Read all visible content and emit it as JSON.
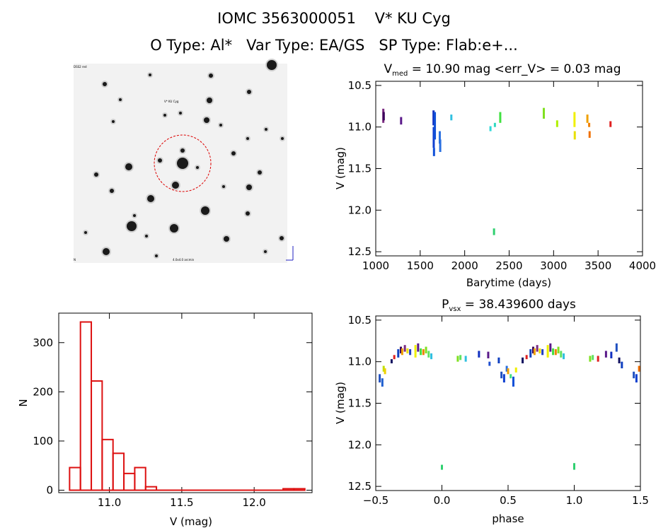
{
  "header": {
    "title": "IOMC 3563000051    V* KU Cyg",
    "subtitle": "O Type: Al*   Var Type: EA/GS   SP Type: Flab:e+..."
  },
  "image_panel": {
    "label_top_left": "DSS2 red",
    "label_target": "V* KU Cyg",
    "label_bottom_left": "N",
    "label_bottom_center": "4.0x4.0 arcmin",
    "colors": {
      "background": "#f2f2f2",
      "aperture": "#dd0000"
    }
  },
  "chart_data": [
    {
      "type": "scatter",
      "title": "V_med = 10.90 mag <err_V> = 0.03 mag",
      "title_parts": {
        "v": "V",
        "sub": "med",
        "rest": " = 10.90 mag <err_V> = 0.03 mag"
      },
      "xlabel": "Barytime (days)",
      "ylabel": "V (mag)",
      "xlim": [
        1000,
        4000
      ],
      "ylim": [
        12.55,
        10.45
      ],
      "xticks": [
        "1000",
        "1500",
        "2000",
        "2500",
        "3000",
        "3500",
        "4000"
      ],
      "yticks": [
        "10.5",
        "11.0",
        "11.5",
        "12.0",
        "12.5"
      ],
      "segments": [
        {
          "x": 1085,
          "y1": 10.78,
          "y2": 10.95,
          "color": "#7a2a80"
        },
        {
          "x": 1090,
          "y1": 10.82,
          "y2": 10.92,
          "color": "#3a005a"
        },
        {
          "x": 1285,
          "y1": 10.88,
          "y2": 10.97,
          "color": "#5a1a8a"
        },
        {
          "x": 1650,
          "y1": 10.8,
          "y2": 10.98,
          "color": "#1030c0"
        },
        {
          "x": 1652,
          "y1": 11.0,
          "y2": 11.25,
          "color": "#1040d0"
        },
        {
          "x": 1655,
          "y1": 11.25,
          "y2": 11.35,
          "color": "#1050d8"
        },
        {
          "x": 1665,
          "y1": 10.82,
          "y2": 11.15,
          "color": "#1050d8"
        },
        {
          "x": 1720,
          "y1": 11.05,
          "y2": 11.2,
          "color": "#2a70e0"
        },
        {
          "x": 1725,
          "y1": 11.15,
          "y2": 11.3,
          "color": "#2a70e0"
        },
        {
          "x": 1850,
          "y1": 10.85,
          "y2": 10.92,
          "color": "#30c0e0"
        },
        {
          "x": 2290,
          "y1": 10.99,
          "y2": 11.05,
          "color": "#30d8d8"
        },
        {
          "x": 2340,
          "y1": 10.95,
          "y2": 11.0,
          "color": "#30d8c0"
        },
        {
          "x": 2330,
          "y1": 12.22,
          "y2": 12.3,
          "color": "#30d070"
        },
        {
          "x": 2400,
          "y1": 10.82,
          "y2": 10.95,
          "color": "#40e040"
        },
        {
          "x": 2890,
          "y1": 10.77,
          "y2": 10.9,
          "color": "#80e020"
        },
        {
          "x": 3040,
          "y1": 10.92,
          "y2": 11.0,
          "color": "#b0f000"
        },
        {
          "x": 3235,
          "y1": 10.82,
          "y2": 11.0,
          "color": "#f0f000"
        },
        {
          "x": 3238,
          "y1": 11.05,
          "y2": 11.15,
          "color": "#e8e000"
        },
        {
          "x": 3380,
          "y1": 10.85,
          "y2": 10.95,
          "color": "#f0a000"
        },
        {
          "x": 3400,
          "y1": 10.95,
          "y2": 11.0,
          "color": "#f08000"
        },
        {
          "x": 3405,
          "y1": 11.05,
          "y2": 11.13,
          "color": "#f07000"
        },
        {
          "x": 3640,
          "y1": 10.93,
          "y2": 11.0,
          "color": "#e02020"
        }
      ]
    },
    {
      "type": "bar",
      "title": "",
      "xlabel": "V (mag)",
      "ylabel": "N",
      "xlim": [
        10.65,
        12.4
      ],
      "ylim": [
        -5,
        360
      ],
      "xticks": [
        "11.0",
        "11.5",
        "12.0"
      ],
      "yticks": [
        "0",
        "100",
        "200",
        "300"
      ],
      "bin_width": 0.075,
      "bins": [
        {
          "left": 10.725,
          "value": 46
        },
        {
          "left": 10.8,
          "value": 342
        },
        {
          "left": 10.875,
          "value": 222
        },
        {
          "left": 10.95,
          "value": 103
        },
        {
          "left": 11.025,
          "value": 75
        },
        {
          "left": 11.1,
          "value": 34
        },
        {
          "left": 11.175,
          "value": 46
        },
        {
          "left": 11.25,
          "value": 7
        },
        {
          "left": 11.325,
          "value": 0
        },
        {
          "left": 12.2,
          "value": 3
        },
        {
          "left": 12.275,
          "value": 3
        }
      ],
      "color": "#dd1111"
    },
    {
      "type": "scatter",
      "title": "P_vsx = 38.439600 days",
      "title_parts": {
        "v": "P",
        "sub": "vsx",
        "rest": " = 38.439600 days"
      },
      "xlabel": "phase",
      "ylabel": "V (mag)",
      "xlim": [
        -0.5,
        1.5
      ],
      "ylim": [
        12.55,
        10.45
      ],
      "xticks": [
        "−0.5",
        "0.0",
        "0.5",
        "1.0",
        "1.5"
      ],
      "yticks": [
        "10.5",
        "11.0",
        "11.5",
        "12.0",
        "12.5"
      ],
      "segments": [
        {
          "x": -0.47,
          "y1": 11.15,
          "y2": 11.25,
          "color": "#2050c0"
        },
        {
          "x": -0.45,
          "y1": 11.2,
          "y2": 11.3,
          "color": "#2060d0"
        },
        {
          "x": -0.44,
          "y1": 11.05,
          "y2": 11.12,
          "color": "#c0e000"
        },
        {
          "x": -0.43,
          "y1": 11.08,
          "y2": 11.15,
          "color": "#f0d000"
        },
        {
          "x": -0.38,
          "y1": 10.97,
          "y2": 11.02,
          "color": "#101060"
        },
        {
          "x": -0.36,
          "y1": 10.92,
          "y2": 10.97,
          "color": "#e02020"
        },
        {
          "x": -0.33,
          "y1": 10.85,
          "y2": 10.95,
          "color": "#1040c0"
        },
        {
          "x": -0.31,
          "y1": 10.82,
          "y2": 10.9,
          "color": "#3a005a"
        },
        {
          "x": -0.3,
          "y1": 10.84,
          "y2": 10.92,
          "color": "#f0a000"
        },
        {
          "x": -0.28,
          "y1": 10.8,
          "y2": 10.88,
          "color": "#7a2a80"
        },
        {
          "x": -0.26,
          "y1": 10.84,
          "y2": 10.9,
          "color": "#f0e000"
        },
        {
          "x": -0.24,
          "y1": 10.85,
          "y2": 10.92,
          "color": "#2040c0"
        },
        {
          "x": -0.2,
          "y1": 10.8,
          "y2": 10.95,
          "color": "#f0f000"
        },
        {
          "x": -0.18,
          "y1": 10.78,
          "y2": 10.88,
          "color": "#5a1a8a"
        },
        {
          "x": -0.16,
          "y1": 10.84,
          "y2": 10.92,
          "color": "#40e040"
        },
        {
          "x": -0.14,
          "y1": 10.85,
          "y2": 10.92,
          "color": "#f08000"
        },
        {
          "x": -0.12,
          "y1": 10.82,
          "y2": 10.9,
          "color": "#80e020"
        },
        {
          "x": -0.1,
          "y1": 10.87,
          "y2": 10.95,
          "color": "#60e060"
        },
        {
          "x": -0.08,
          "y1": 10.9,
          "y2": 10.97,
          "color": "#30c0e0"
        },
        {
          "x": 0.12,
          "y1": 10.93,
          "y2": 11.0,
          "color": "#80e020"
        },
        {
          "x": 0.14,
          "y1": 10.92,
          "y2": 10.98,
          "color": "#60e060"
        },
        {
          "x": 0.18,
          "y1": 10.93,
          "y2": 11.0,
          "color": "#30c0e0"
        },
        {
          "x": 0.28,
          "y1": 10.87,
          "y2": 10.95,
          "color": "#1030c0"
        },
        {
          "x": 0.35,
          "y1": 10.88,
          "y2": 10.96,
          "color": "#5a1a8a"
        },
        {
          "x": 0.36,
          "y1": 11.0,
          "y2": 11.05,
          "color": "#2050d0"
        },
        {
          "x": 0.43,
          "y1": 10.95,
          "y2": 11.02,
          "color": "#1040c0"
        },
        {
          "x": 0.45,
          "y1": 11.12,
          "y2": 11.2,
          "color": "#2050c0"
        },
        {
          "x": 0.47,
          "y1": 11.15,
          "y2": 11.25,
          "color": "#1040d0"
        },
        {
          "x": 0.49,
          "y1": 11.05,
          "y2": 11.12,
          "color": "#2a70e0"
        },
        {
          "x": 0.5,
          "y1": 11.08,
          "y2": 11.15,
          "color": "#f0a000"
        },
        {
          "x": 0.52,
          "y1": 11.15,
          "y2": 11.2,
          "color": "#40e080"
        },
        {
          "x": 0.54,
          "y1": 11.18,
          "y2": 11.3,
          "color": "#1050d8"
        },
        {
          "x": 0.56,
          "y1": 11.07,
          "y2": 11.13,
          "color": "#f0f000"
        },
        {
          "x": 0.61,
          "y1": 10.95,
          "y2": 11.02,
          "color": "#101060"
        },
        {
          "x": 0.64,
          "y1": 10.92,
          "y2": 10.97,
          "color": "#e02020"
        },
        {
          "x": 0.67,
          "y1": 10.85,
          "y2": 10.95,
          "color": "#1040c0"
        },
        {
          "x": 0.69,
          "y1": 10.82,
          "y2": 10.9,
          "color": "#3a005a"
        },
        {
          "x": 0.7,
          "y1": 10.84,
          "y2": 10.92,
          "color": "#f0a000"
        },
        {
          "x": 0.72,
          "y1": 10.8,
          "y2": 10.88,
          "color": "#7a2a80"
        },
        {
          "x": 0.74,
          "y1": 10.84,
          "y2": 10.9,
          "color": "#f0e000"
        },
        {
          "x": 0.76,
          "y1": 10.85,
          "y2": 10.92,
          "color": "#2040c0"
        },
        {
          "x": 0.8,
          "y1": 10.8,
          "y2": 10.95,
          "color": "#f0f000"
        },
        {
          "x": 0.82,
          "y1": 10.78,
          "y2": 10.88,
          "color": "#5a1a8a"
        },
        {
          "x": 0.84,
          "y1": 10.84,
          "y2": 10.92,
          "color": "#40e040"
        },
        {
          "x": 0.86,
          "y1": 10.85,
          "y2": 10.92,
          "color": "#f08000"
        },
        {
          "x": 0.88,
          "y1": 10.82,
          "y2": 10.9,
          "color": "#80e020"
        },
        {
          "x": 0.9,
          "y1": 10.87,
          "y2": 10.95,
          "color": "#60e060"
        },
        {
          "x": 0.92,
          "y1": 10.9,
          "y2": 10.97,
          "color": "#30c0e0"
        },
        {
          "x": 1.0,
          "y1": 12.22,
          "y2": 12.3,
          "color": "#30d070"
        },
        {
          "x": 1.12,
          "y1": 10.93,
          "y2": 11.0,
          "color": "#80e020"
        },
        {
          "x": 1.14,
          "y1": 10.92,
          "y2": 10.98,
          "color": "#60e060"
        },
        {
          "x": 1.18,
          "y1": 10.93,
          "y2": 11.0,
          "color": "#e02020"
        },
        {
          "x": 1.24,
          "y1": 10.87,
          "y2": 10.95,
          "color": "#5a1a8a"
        },
        {
          "x": 1.28,
          "y1": 10.88,
          "y2": 10.96,
          "color": "#1030c0"
        },
        {
          "x": 1.32,
          "y1": 10.78,
          "y2": 10.88,
          "color": "#2050c0"
        },
        {
          "x": 1.34,
          "y1": 10.95,
          "y2": 11.02,
          "color": "#101060"
        },
        {
          "x": 1.36,
          "y1": 11.0,
          "y2": 11.08,
          "color": "#1040c0"
        },
        {
          "x": 1.45,
          "y1": 11.12,
          "y2": 11.2,
          "color": "#2050c0"
        },
        {
          "x": 1.47,
          "y1": 11.15,
          "y2": 11.25,
          "color": "#1040d0"
        },
        {
          "x": 1.49,
          "y1": 11.05,
          "y2": 11.12,
          "color": "#f07000"
        },
        {
          "x": 0.0,
          "y1": 12.24,
          "y2": 12.3,
          "color": "#30d070"
        }
      ]
    }
  ]
}
